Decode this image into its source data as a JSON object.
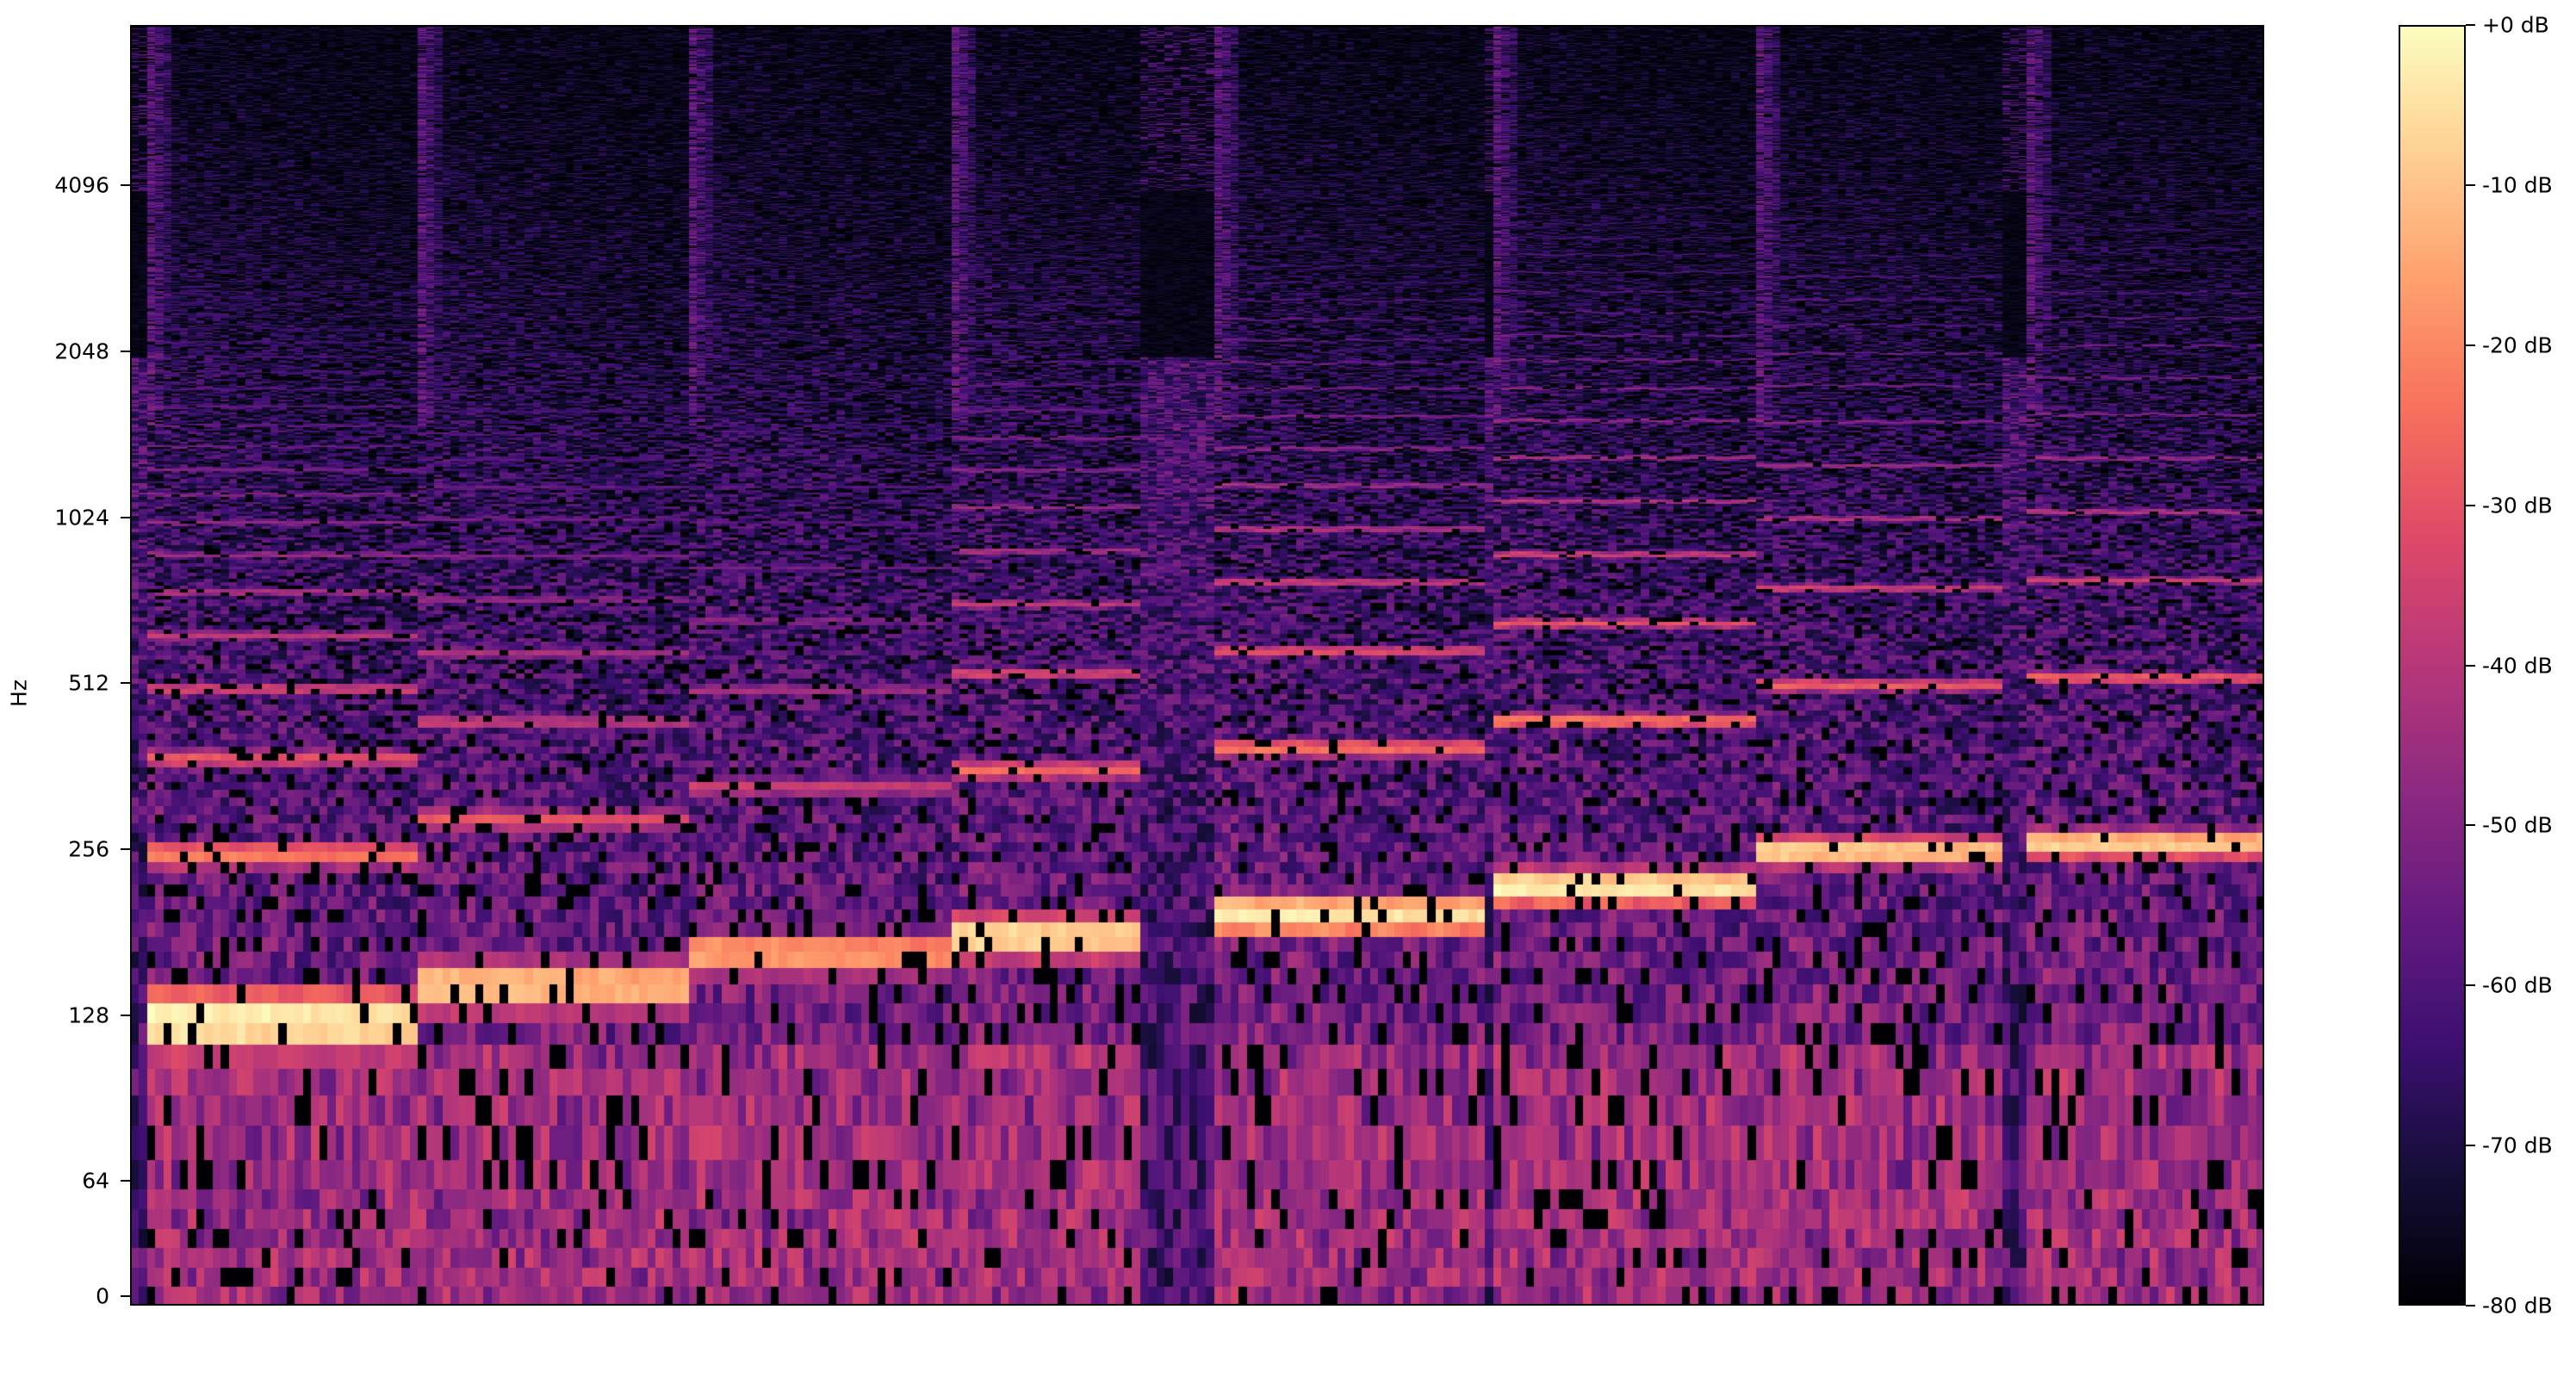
{
  "chart_data": {
    "type": "heatmap",
    "title": "",
    "xlabel": "",
    "ylabel": "Hz",
    "y_scale": "log",
    "y_ticks": [
      "0",
      "64",
      "128",
      "256",
      "512",
      "1024",
      "2048",
      "4096"
    ],
    "y_tick_values": [
      0,
      64,
      128,
      256,
      512,
      1024,
      2048,
      4096
    ],
    "ylim": [
      0,
      8000
    ],
    "colormap": "magma",
    "zlim": [
      -80,
      0
    ],
    "colorbar_ticks": [
      "+0 dB",
      "-10 dB",
      "-20 dB",
      "-30 dB",
      "-40 dB",
      "-50 dB",
      "-60 dB",
      "-70 dB",
      "-80 dB"
    ],
    "colorbar_values": [
      0,
      -10,
      -20,
      -30,
      -40,
      -50,
      -60,
      -70,
      -80
    ],
    "colormap_stops": [
      "#000004",
      "#140e36",
      "#3b0f70",
      "#641a80",
      "#8c2981",
      "#b73779",
      "#de4968",
      "#f7705c",
      "#fe9f6d",
      "#fecf92",
      "#fcfdbf"
    ],
    "total_frames": 260,
    "notes": [
      {
        "start_frame": 2,
        "end_frame": 35,
        "f0_hz": 125,
        "peak_db": 0
      },
      {
        "start_frame": 35,
        "end_frame": 68,
        "f0_hz": 145,
        "peak_db": -8
      },
      {
        "start_frame": 68,
        "end_frame": 100,
        "f0_hz": 166,
        "peak_db": -14
      },
      {
        "start_frame": 100,
        "end_frame": 123,
        "f0_hz": 178,
        "peak_db": -4
      },
      {
        "start_frame": 132,
        "end_frame": 165,
        "f0_hz": 195,
        "peak_db": -2
      },
      {
        "start_frame": 166,
        "end_frame": 198,
        "f0_hz": 219,
        "peak_db": -1
      },
      {
        "start_frame": 198,
        "end_frame": 228,
        "f0_hz": 254,
        "peak_db": -6
      },
      {
        "start_frame": 231,
        "end_frame": 260,
        "f0_hz": 262,
        "peak_db": -6
      }
    ]
  }
}
